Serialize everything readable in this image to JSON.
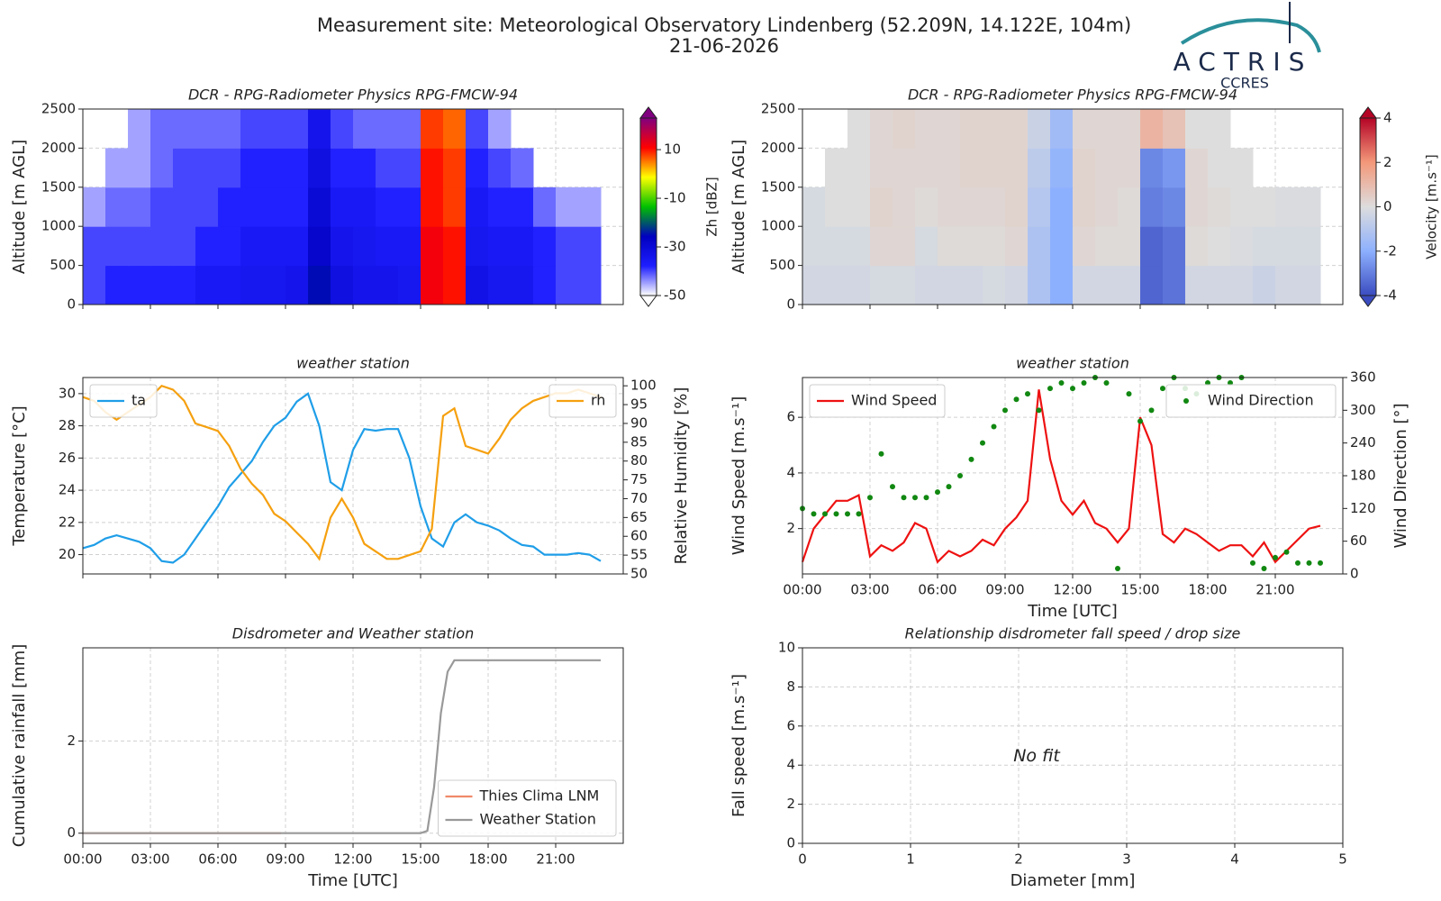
{
  "title": "Measurement site: Meteorological Observatory Lindenberg (52.209N, 14.122E, 104m)",
  "date": "21-06-2026",
  "logo": {
    "name": "ACTRIS",
    "sub": "CCRES"
  },
  "chart_data": [
    {
      "type": "heatmap",
      "title": "DCR - RPG-Radiometer Physics RPG-FMCW-94",
      "ylabel": "Altitude [m AGL]",
      "x": [
        0,
        1,
        2,
        3,
        4,
        5,
        6,
        7,
        8,
        9,
        10,
        11,
        12,
        13,
        14,
        15,
        16,
        17,
        18,
        19,
        20,
        21,
        22,
        23
      ],
      "y": [
        0,
        500,
        1000,
        1500,
        2000
      ],
      "values": [
        [
          -40,
          -38,
          -38,
          -38,
          -38,
          -36,
          -36,
          -35,
          -35,
          -34,
          -25,
          -32,
          -34,
          -34,
          -35,
          12,
          10,
          -33,
          -35,
          -35,
          -38,
          -40,
          -40,
          null
        ],
        [
          -40,
          -40,
          -40,
          -40,
          -40,
          -38,
          -38,
          -36,
          -36,
          -36,
          -28,
          -34,
          -35,
          -36,
          -36,
          12,
          10,
          -35,
          -36,
          -36,
          -38,
          -40,
          -40,
          null
        ],
        [
          -45,
          -42,
          -42,
          -40,
          -40,
          -40,
          -38,
          -38,
          -38,
          -38,
          -30,
          -36,
          -36,
          -38,
          -38,
          10,
          8,
          -36,
          -38,
          -38,
          -42,
          -45,
          -45,
          null
        ],
        [
          null,
          -45,
          -45,
          -42,
          -40,
          -40,
          -40,
          -38,
          -38,
          -38,
          -32,
          -38,
          -38,
          -40,
          -40,
          10,
          8,
          -38,
          -40,
          -42,
          null,
          null,
          null,
          null
        ],
        [
          null,
          null,
          -45,
          -42,
          -42,
          -42,
          -42,
          -40,
          -40,
          -40,
          -34,
          -40,
          -42,
          -42,
          -42,
          8,
          6,
          -40,
          -45,
          null,
          null,
          null,
          null,
          null
        ]
      ],
      "xlim": [
        0,
        24
      ],
      "xticks": [
        0,
        3,
        6,
        9,
        12,
        15,
        18,
        21
      ],
      "xtick_labels": false,
      "ylim": [
        0,
        2500
      ],
      "yticks": [
        0,
        500,
        1000,
        1500,
        2000,
        2500
      ],
      "grid": true,
      "colorbar": {
        "label": "Zh [dBZ]",
        "lim": [
          -50,
          23
        ],
        "ticks": [
          -50,
          -30,
          -10,
          10
        ],
        "colors": [
          "#ffffff",
          "#1e1eff",
          "#0000c0",
          "#00c000",
          "#ffff00",
          "#ff0000",
          "#800080"
        ]
      }
    },
    {
      "type": "heatmap",
      "title": "DCR - RPG-Radiometer Physics RPG-FMCW-94",
      "ylabel": "Altitude [m AGL]",
      "x": [
        0,
        1,
        2,
        3,
        4,
        5,
        6,
        7,
        8,
        9,
        10,
        11,
        12,
        13,
        14,
        15,
        16,
        17,
        18,
        19,
        20,
        21,
        22,
        23
      ],
      "y": [
        0,
        500,
        1000,
        1500,
        2000
      ],
      "values": [
        [
          -0.3,
          -0.3,
          -0.3,
          -0.2,
          -0.2,
          -0.3,
          -0.3,
          -0.3,
          -0.2,
          -0.3,
          -1.2,
          -2.0,
          -0.3,
          -0.3,
          -0.3,
          -3.5,
          -3.2,
          -0.3,
          -0.3,
          -0.3,
          -0.5,
          -0.3,
          -0.3,
          null
        ],
        [
          -0.2,
          -0.2,
          -0.2,
          0.2,
          0.2,
          -0.2,
          0.1,
          0.1,
          0.1,
          0.2,
          -1.2,
          -2.0,
          0.2,
          0.1,
          0.1,
          -3.5,
          -3.2,
          0.1,
          0,
          -0.1,
          -0.2,
          -0.2,
          -0.2,
          null
        ],
        [
          -0.2,
          0,
          0,
          0.3,
          0.2,
          0.1,
          0.2,
          0.2,
          0.2,
          0.3,
          -1.0,
          -2.0,
          0.3,
          0.2,
          0.1,
          -3.0,
          -2.8,
          0.2,
          0.1,
          0,
          0,
          -0.1,
          -0.1,
          null
        ],
        [
          null,
          0,
          0,
          0.2,
          0.2,
          0.2,
          0.2,
          0.3,
          0.3,
          0.3,
          -0.8,
          -1.8,
          0.3,
          0.2,
          0.2,
          -2.8,
          -2.5,
          0.2,
          0,
          0,
          null,
          null,
          null,
          null
        ],
        [
          null,
          null,
          0,
          0.2,
          0.3,
          0.2,
          0.2,
          0.3,
          0.3,
          0.3,
          -0.5,
          -1.5,
          0.2,
          0.2,
          0.2,
          1.2,
          0.8,
          0,
          0,
          null,
          null,
          null,
          null,
          null
        ]
      ],
      "xlim": [
        0,
        24
      ],
      "xticks": [
        0,
        3,
        6,
        9,
        12,
        15,
        18,
        21
      ],
      "xtick_labels": false,
      "ylim": [
        0,
        2500
      ],
      "yticks": [
        0,
        500,
        1000,
        1500,
        2000,
        2500
      ],
      "grid": true,
      "colorbar": {
        "label": "Velocity [m.s⁻¹]",
        "lim": [
          -4,
          4
        ],
        "ticks": [
          -4,
          -2,
          0,
          2,
          4
        ],
        "colors": [
          "#3b4cc0",
          "#8db0fe",
          "#dddddd",
          "#f4987a",
          "#b40426"
        ]
      }
    },
    {
      "type": "line",
      "title": "weather station",
      "ylabel": "Temperature [°C]",
      "y2label": "Relative Humidity [%]",
      "x": [
        0,
        0.5,
        1,
        1.5,
        2,
        2.5,
        3,
        3.5,
        4,
        4.5,
        5,
        5.5,
        6,
        6.5,
        7,
        7.5,
        8,
        8.5,
        9,
        9.5,
        10,
        10.5,
        11,
        11.5,
        12,
        12.5,
        13,
        13.5,
        14,
        14.5,
        15,
        15.5,
        16,
        16.5,
        17,
        17.5,
        18,
        18.5,
        19,
        19.5,
        20,
        20.5,
        21,
        21.5,
        22,
        22.5,
        23
      ],
      "series": [
        {
          "name": "ta",
          "color": "#1f9ee8",
          "legend": "upper left",
          "values": [
            20.4,
            20.6,
            21.0,
            21.2,
            21.0,
            20.8,
            20.4,
            19.6,
            19.5,
            20.0,
            21.0,
            22.0,
            23.0,
            24.2,
            25.0,
            25.8,
            27.0,
            28.0,
            28.5,
            29.5,
            30.0,
            28.0,
            24.5,
            24.0,
            26.5,
            27.8,
            27.7,
            27.8,
            27.8,
            26.0,
            23.0,
            21.0,
            20.5,
            22.0,
            22.5,
            22.0,
            21.8,
            21.5,
            21.0,
            20.6,
            20.5,
            20.0,
            20.0,
            20.0,
            20.1,
            20.0,
            19.6
          ]
        },
        {
          "name": "rh",
          "color": "#f5a00f",
          "axis": "y2",
          "legend": "upper right",
          "values": [
            97,
            96,
            93,
            91,
            93,
            95,
            97,
            100,
            99,
            96,
            90,
            89,
            88,
            84,
            78,
            74,
            71,
            66,
            64,
            61,
            58,
            54,
            65,
            70,
            65,
            58,
            56,
            54,
            54,
            55,
            56,
            62,
            92,
            94,
            84,
            83,
            82,
            86,
            91,
            94,
            96,
            97,
            98,
            98,
            99,
            98,
            97
          ]
        }
      ],
      "xlim": [
        0,
        24
      ],
      "xticks": [
        0,
        3,
        6,
        9,
        12,
        15,
        18,
        21
      ],
      "xtick_labels": false,
      "ylim": [
        18.8,
        31
      ],
      "yticks": [
        20,
        22,
        24,
        26,
        28,
        30
      ],
      "y2lim": [
        50,
        102.2
      ],
      "y2ticks": [
        50,
        55,
        60,
        65,
        70,
        75,
        80,
        85,
        90,
        95,
        100
      ],
      "grid": true
    },
    {
      "type": "line",
      "title": "weather station",
      "ylabel": "Wind Speed [m.s⁻¹]",
      "y2label": "Wind Direction [°]",
      "xlabel": "Time [UTC]",
      "x": [
        0,
        0.5,
        1,
        1.5,
        2,
        2.5,
        3,
        3.5,
        4,
        4.5,
        5,
        5.5,
        6,
        6.5,
        7,
        7.5,
        8,
        8.5,
        9,
        9.5,
        10,
        10.5,
        11,
        11.5,
        12,
        12.5,
        13,
        13.5,
        14,
        14.5,
        15,
        15.5,
        16,
        16.5,
        17,
        17.5,
        18,
        18.5,
        19,
        19.5,
        20,
        20.5,
        21,
        21.5,
        22,
        22.5,
        23
      ],
      "series": [
        {
          "name": "Wind Speed",
          "color": "#ee1111",
          "legend": "upper left",
          "values": [
            0.8,
            2.0,
            2.5,
            3.0,
            3.0,
            3.2,
            1.0,
            1.4,
            1.2,
            1.5,
            2.2,
            2.0,
            0.8,
            1.2,
            1.0,
            1.2,
            1.6,
            1.4,
            2.0,
            2.4,
            3.0,
            7.0,
            4.5,
            3.0,
            2.5,
            3.0,
            2.2,
            2.0,
            1.5,
            2.0,
            6.0,
            5.0,
            1.8,
            1.5,
            2.0,
            1.8,
            1.5,
            1.2,
            1.4,
            1.4,
            1.0,
            1.5,
            0.8,
            1.2,
            1.6,
            2.0,
            2.1
          ]
        },
        {
          "name": "Wind Direction",
          "color": "#118811",
          "axis": "y2",
          "style": "points",
          "legend": "upper right",
          "values": [
            120,
            110,
            110,
            110,
            110,
            110,
            140,
            220,
            160,
            140,
            140,
            140,
            150,
            160,
            180,
            210,
            240,
            270,
            300,
            320,
            330,
            300,
            340,
            350,
            340,
            350,
            360,
            350,
            10,
            330,
            280,
            300,
            340,
            360,
            340,
            330,
            350,
            360,
            350,
            360,
            20,
            10,
            30,
            40,
            20,
            20,
            20
          ]
        }
      ],
      "xlim": [
        0,
        24
      ],
      "xticks": [
        {
          "value": 0,
          "label": "00:00"
        },
        {
          "value": 3,
          "label": "03:00"
        },
        {
          "value": 6,
          "label": "06:00"
        },
        {
          "value": 9,
          "label": "09:00"
        },
        {
          "value": 12,
          "label": "12:00"
        },
        {
          "value": 15,
          "label": "15:00"
        },
        {
          "value": 18,
          "label": "18:00"
        },
        {
          "value": 21,
          "label": "21:00"
        }
      ],
      "ylim": [
        0.37,
        7.43
      ],
      "yticks": [
        2,
        4,
        6
      ],
      "y2lim": [
        0,
        360
      ],
      "y2ticks": [
        0,
        60,
        120,
        180,
        240,
        300,
        360
      ],
      "grid": true
    },
    {
      "type": "line",
      "title": "Disdrometer and Weather station",
      "ylabel": "Cumulative rainfall [mm]",
      "xlabel": "Time [UTC]",
      "series": [
        {
          "name": "Thies Clima LNM",
          "color": "#f08a6a",
          "legend": "lower right",
          "x": [
            0,
            8.8
          ],
          "values": [
            0,
            0
          ]
        },
        {
          "name": "Weather Station",
          "color": "#999999",
          "legend": "lower right",
          "x": [
            0,
            15,
            15.3,
            15.6,
            15.9,
            16.2,
            16.5,
            23
          ],
          "values": [
            0,
            0,
            0.05,
            1.0,
            2.6,
            3.5,
            3.75,
            3.75
          ]
        }
      ],
      "xlim": [
        0,
        24
      ],
      "xticks": [
        {
          "value": 0,
          "label": "00:00"
        },
        {
          "value": 3,
          "label": "03:00"
        },
        {
          "value": 6,
          "label": "06:00"
        },
        {
          "value": 9,
          "label": "09:00"
        },
        {
          "value": 12,
          "label": "12:00"
        },
        {
          "value": 15,
          "label": "15:00"
        },
        {
          "value": 18,
          "label": "18:00"
        },
        {
          "value": 21,
          "label": "21:00"
        }
      ],
      "ylim": [
        -0.22,
        4.02
      ],
      "yticks": [
        0,
        2
      ],
      "grid": true
    },
    {
      "type": "scatter",
      "title": "Relationship disdrometer fall speed / drop size",
      "ylabel": "Fall speed [m.s⁻¹]",
      "xlabel": "Diameter [mm]",
      "annotation": "No fit",
      "xlim": [
        0,
        5
      ],
      "xticks": [
        0,
        1,
        2,
        3,
        4,
        5
      ],
      "ylim": [
        0,
        10
      ],
      "yticks": [
        0,
        2,
        4,
        6,
        8,
        10
      ],
      "grid": true
    }
  ]
}
